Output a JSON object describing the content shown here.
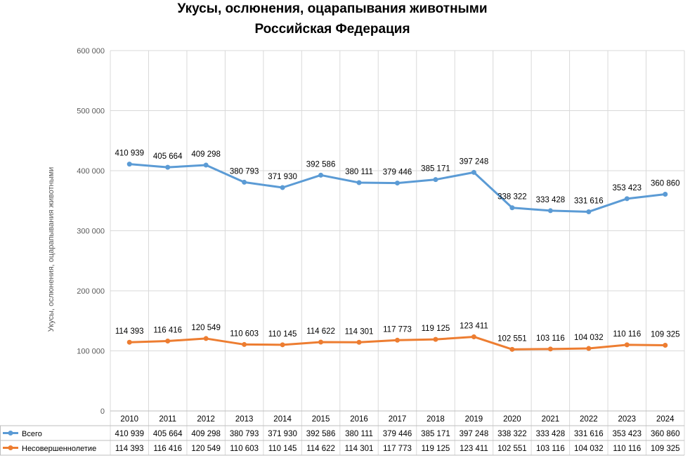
{
  "chart_data": {
    "type": "line",
    "title": "Укусы, ослюнения, оцарапывания животными",
    "subtitle": "Российская Федерация",
    "ylabel": "Укусы, ослюнения, оцарапывания животными",
    "xlabel": "",
    "ylim": [
      0,
      600000
    ],
    "yticks": [
      "0",
      "100 000",
      "200 000",
      "300 000",
      "400 000",
      "500 000",
      "600 000"
    ],
    "ytick_values": [
      0,
      100000,
      200000,
      300000,
      400000,
      500000,
      600000
    ],
    "grid": true,
    "legend": "data-table",
    "categories": [
      "2010",
      "2011",
      "2012",
      "2013",
      "2014",
      "2015",
      "2016",
      "2017",
      "2018",
      "2019",
      "2020",
      "2021",
      "2022",
      "2023",
      "2024"
    ],
    "series": [
      {
        "name": "Всего",
        "color": "#5B9BD5",
        "values": [
          410939,
          405664,
          409298,
          380793,
          371930,
          392586,
          380111,
          379446,
          385171,
          397248,
          338322,
          333428,
          331616,
          353423,
          360860
        ],
        "labels": [
          "410 939",
          "405 664",
          "409 298",
          "380 793",
          "371 930",
          "392 586",
          "380 111",
          "379 446",
          "385 171",
          "397 248",
          "338 322",
          "333 428",
          "331 616",
          "353 423",
          "360 860"
        ]
      },
      {
        "name": "Несовершеннолетие",
        "color": "#ED7D31",
        "values": [
          114393,
          116416,
          120549,
          110603,
          110145,
          114622,
          114301,
          117773,
          119125,
          123411,
          102551,
          103116,
          104032,
          110116,
          109325
        ],
        "labels": [
          "114 393",
          "116 416",
          "120 549",
          "110 603",
          "110 145",
          "114 622",
          "114 301",
          "117 773",
          "119 125",
          "123 411",
          "102 551",
          "103 116",
          "104 032",
          "110 116",
          "109 325"
        ]
      }
    ]
  }
}
